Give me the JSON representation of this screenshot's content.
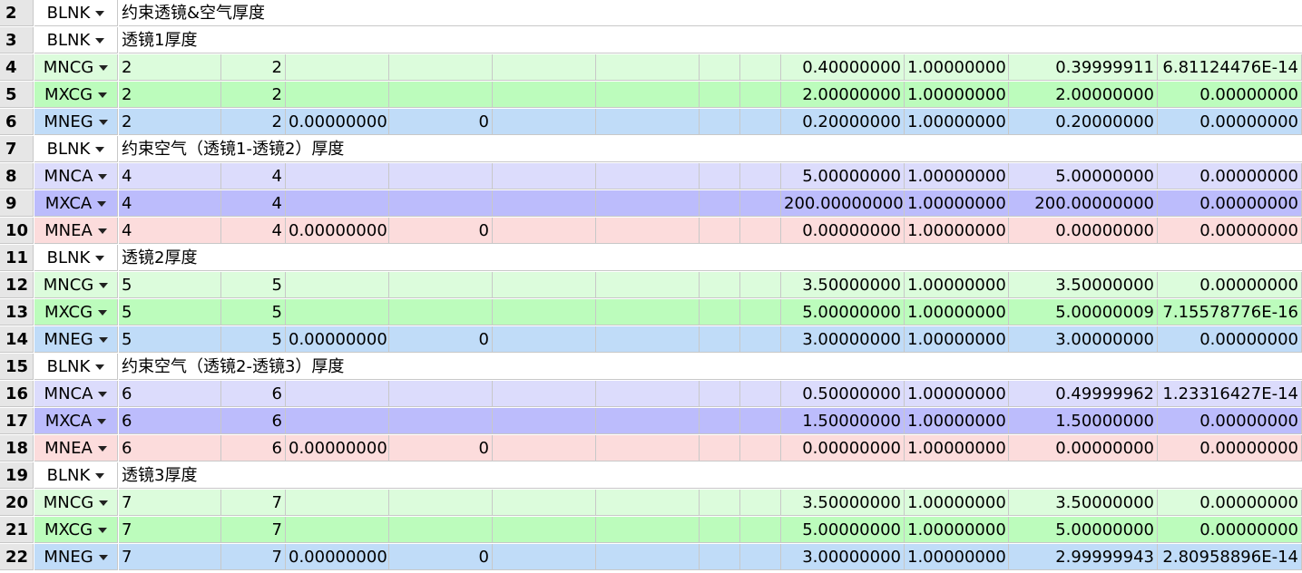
{
  "colors": {
    "MNCG": "#dcfcdc",
    "MXCG": "#bcfcbc",
    "MNEG": "#c0dcf8",
    "MNCA": "#dcdcfc",
    "MXCA": "#bcbcfc",
    "MNEA": "#fcdcdc",
    "BLNK": "#ffffff"
  },
  "rows": [
    {
      "n": "2",
      "type": "BLNK",
      "comment": "约束透镜&空气厚度"
    },
    {
      "n": "3",
      "type": "BLNK",
      "comment": "透镜1厚度"
    },
    {
      "n": "4",
      "type": "MNCG",
      "s1": "2",
      "s2": "2",
      "p1": "",
      "p2": "",
      "target": "0.40000000",
      "weight": "1.00000000",
      "value": "0.39999911",
      "contrib": "6.81124476E-14"
    },
    {
      "n": "5",
      "type": "MXCG",
      "s1": "2",
      "s2": "2",
      "p1": "",
      "p2": "",
      "target": "2.00000000",
      "weight": "1.00000000",
      "value": "2.00000000",
      "contrib": "0.00000000"
    },
    {
      "n": "6",
      "type": "MNEG",
      "s1": "2",
      "s2": "2",
      "p1": "0.00000000",
      "p2": "0",
      "target": "0.20000000",
      "weight": "1.00000000",
      "value": "0.20000000",
      "contrib": "0.00000000"
    },
    {
      "n": "7",
      "type": "BLNK",
      "comment": "约束空气（透镜1-透镜2）厚度"
    },
    {
      "n": "8",
      "type": "MNCA",
      "s1": "4",
      "s2": "4",
      "p1": "",
      "p2": "",
      "target": "5.00000000",
      "weight": "1.00000000",
      "value": "5.00000000",
      "contrib": "0.00000000"
    },
    {
      "n": "9",
      "type": "MXCA",
      "s1": "4",
      "s2": "4",
      "p1": "",
      "p2": "",
      "target": "200.00000000",
      "weight": "1.00000000",
      "value": "200.00000000",
      "contrib": "0.00000000"
    },
    {
      "n": "10",
      "type": "MNEA",
      "s1": "4",
      "s2": "4",
      "p1": "0.00000000",
      "p2": "0",
      "target": "0.00000000",
      "weight": "1.00000000",
      "value": "0.00000000",
      "contrib": "0.00000000"
    },
    {
      "n": "11",
      "type": "BLNK",
      "comment": "透镜2厚度"
    },
    {
      "n": "12",
      "type": "MNCG",
      "s1": "5",
      "s2": "5",
      "p1": "",
      "p2": "",
      "target": "3.50000000",
      "weight": "1.00000000",
      "value": "3.50000000",
      "contrib": "0.00000000"
    },
    {
      "n": "13",
      "type": "MXCG",
      "s1": "5",
      "s2": "5",
      "p1": "",
      "p2": "",
      "target": "5.00000000",
      "weight": "1.00000000",
      "value": "5.00000009",
      "contrib": "7.15578776E-16"
    },
    {
      "n": "14",
      "type": "MNEG",
      "s1": "5",
      "s2": "5",
      "p1": "0.00000000",
      "p2": "0",
      "target": "3.00000000",
      "weight": "1.00000000",
      "value": "3.00000000",
      "contrib": "0.00000000"
    },
    {
      "n": "15",
      "type": "BLNK",
      "comment": "约束空气（透镜2-透镜3）厚度"
    },
    {
      "n": "16",
      "type": "MNCA",
      "s1": "6",
      "s2": "6",
      "p1": "",
      "p2": "",
      "target": "0.50000000",
      "weight": "1.00000000",
      "value": "0.49999962",
      "contrib": "1.23316427E-14"
    },
    {
      "n": "17",
      "type": "MXCA",
      "s1": "6",
      "s2": "6",
      "p1": "",
      "p2": "",
      "target": "1.50000000",
      "weight": "1.00000000",
      "value": "1.50000000",
      "contrib": "0.00000000"
    },
    {
      "n": "18",
      "type": "MNEA",
      "s1": "6",
      "s2": "6",
      "p1": "0.00000000",
      "p2": "0",
      "target": "0.00000000",
      "weight": "1.00000000",
      "value": "0.00000000",
      "contrib": "0.00000000"
    },
    {
      "n": "19",
      "type": "BLNK",
      "comment": "透镜3厚度"
    },
    {
      "n": "20",
      "type": "MNCG",
      "s1": "7",
      "s2": "7",
      "p1": "",
      "p2": "",
      "target": "3.50000000",
      "weight": "1.00000000",
      "value": "3.50000000",
      "contrib": "0.00000000"
    },
    {
      "n": "21",
      "type": "MXCG",
      "s1": "7",
      "s2": "7",
      "p1": "",
      "p2": "",
      "target": "5.00000000",
      "weight": "1.00000000",
      "value": "5.00000000",
      "contrib": "0.00000000"
    },
    {
      "n": "22",
      "type": "MNEG",
      "s1": "7",
      "s2": "7",
      "p1": "0.00000000",
      "p2": "0",
      "target": "3.00000000",
      "weight": "1.00000000",
      "value": "2.99999943",
      "contrib": "2.80958896E-14"
    }
  ]
}
